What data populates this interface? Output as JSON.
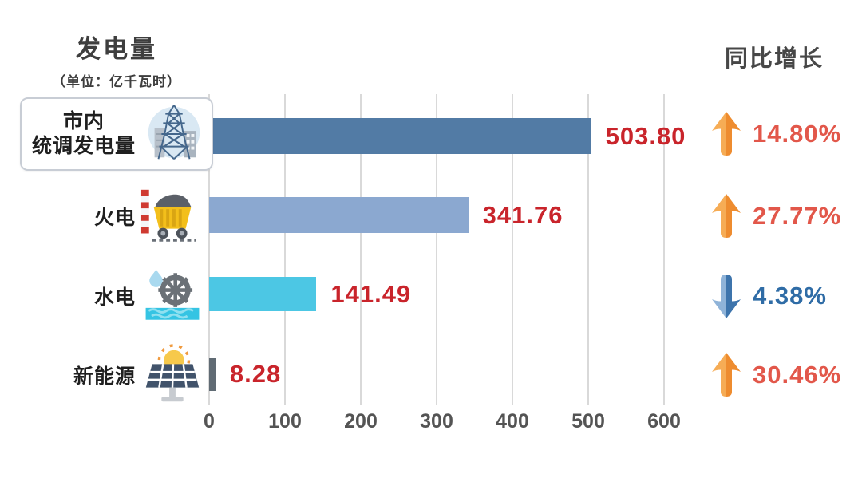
{
  "header": {
    "title": "发电量",
    "subtitle": "（单位：亿千瓦时）",
    "growth_title": "同比增长"
  },
  "chart_data": {
    "type": "bar",
    "orientation": "horizontal",
    "title": "发电量",
    "unit": "亿千瓦时",
    "categories": [
      "市内统调发电量",
      "火电",
      "水电",
      "新能源"
    ],
    "values": [
      503.8,
      341.76,
      141.49,
      8.28
    ],
    "value_labels": [
      "503.80",
      "341.76",
      "141.49",
      "8.28"
    ],
    "growth_series_name": "同比增长",
    "growth_percent": [
      14.8,
      27.77,
      -4.38,
      30.46
    ],
    "x_ticks": [
      0,
      100,
      200,
      300,
      400,
      500,
      600
    ],
    "xlim": [
      0,
      600
    ],
    "grid": "vertical-on",
    "legend": "none",
    "bar_colors": [
      "#527BA5",
      "#8BA8D0",
      "#4CC7E4",
      "#606B74"
    ]
  },
  "rows": [
    {
      "label_lines": [
        "市内",
        "统调发电量"
      ],
      "value": "503.80",
      "growth": "14.80%",
      "direction": "up",
      "icon": "power-tower"
    },
    {
      "label": "火电",
      "value": "341.76",
      "growth": "27.77%",
      "direction": "up",
      "icon": "coal-cart"
    },
    {
      "label": "水电",
      "value": "141.49",
      "growth": "4.38%",
      "direction": "down",
      "icon": "water-wheel"
    },
    {
      "label": "新能源",
      "value": "8.28",
      "growth": "30.46%",
      "direction": "up",
      "icon": "solar-panel"
    }
  ],
  "colors": {
    "value_text": "#C9242B",
    "growth_up_text": "#E2574A",
    "growth_down_text": "#2F6CA6",
    "arrow_up": [
      "#F6AC55",
      "#EE8C2F"
    ],
    "arrow_down": [
      "#8FB3D8",
      "#3D74AC"
    ],
    "gridline": "#D9D9D9",
    "axis_text": "#545454"
  }
}
